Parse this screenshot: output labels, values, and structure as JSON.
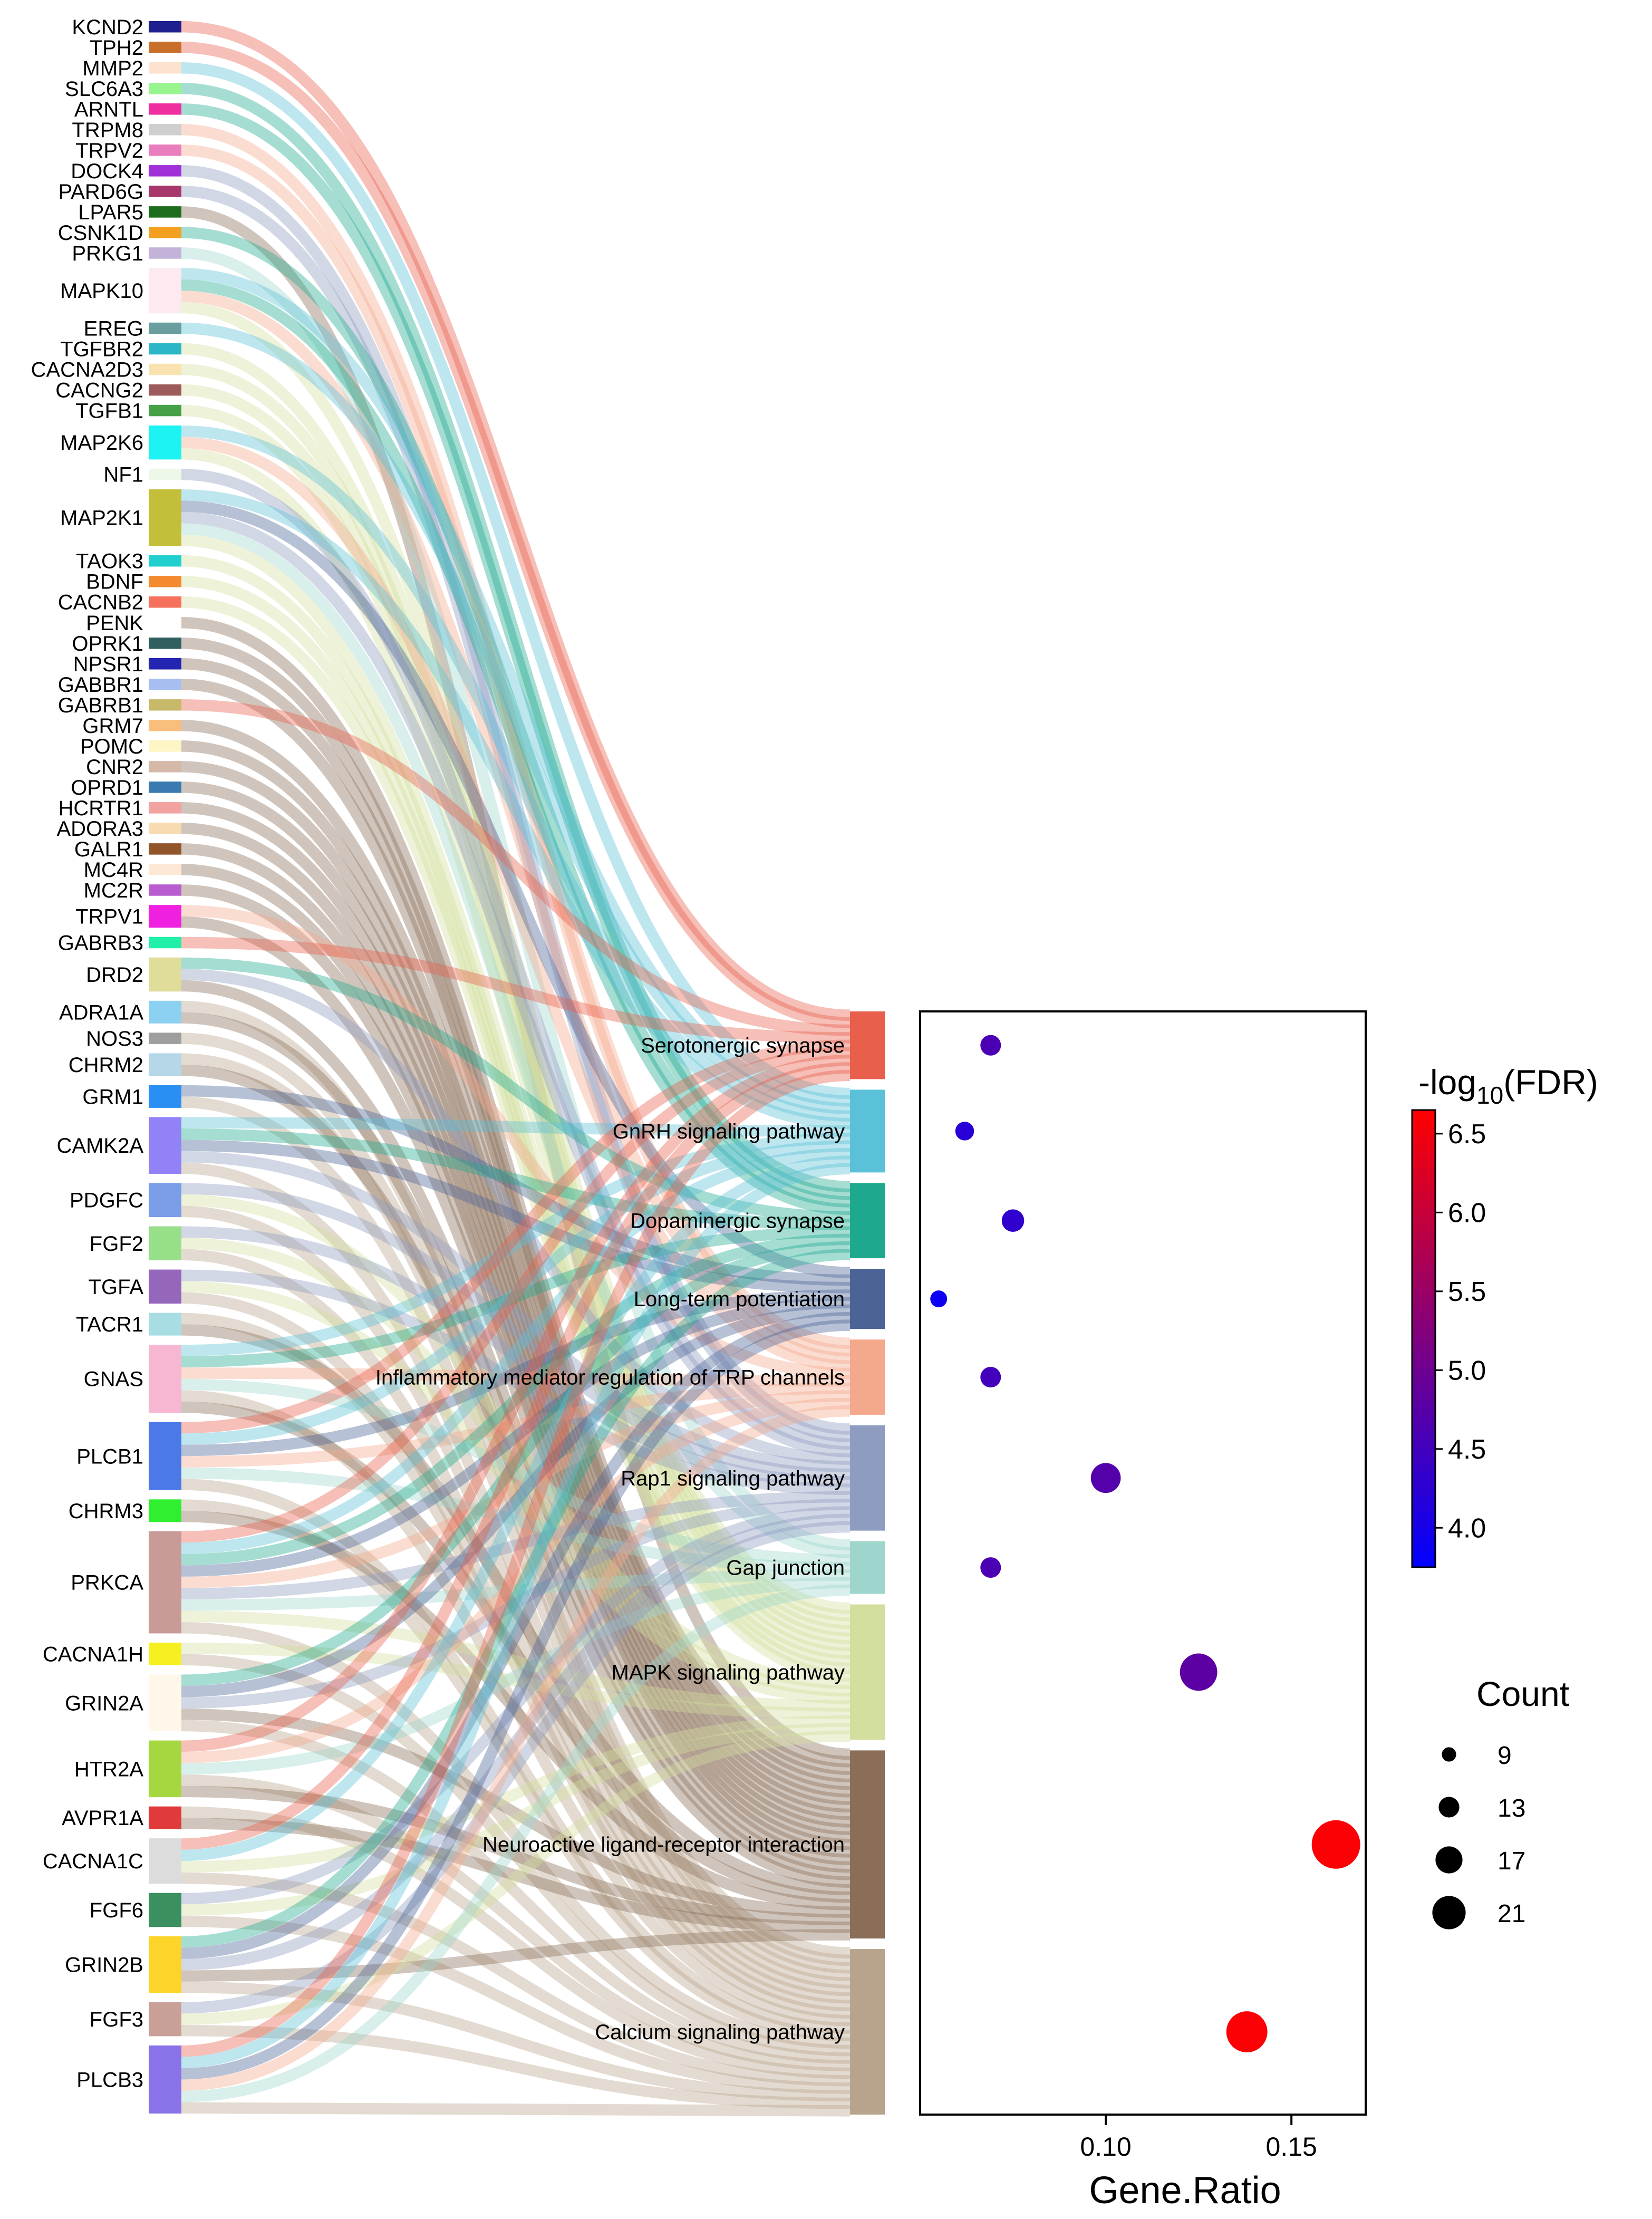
{
  "chart_data": [
    {
      "type": "sankey",
      "title": "",
      "genes": [
        {
          "name": "KCND2",
          "color": "#1f1f8f",
          "pathways": [
            0
          ]
        },
        {
          "name": "TPH2",
          "color": "#c8702a",
          "pathways": [
            0
          ]
        },
        {
          "name": "MMP2",
          "color": "#fde3cf",
          "pathways": [
            1
          ]
        },
        {
          "name": "SLC6A3",
          "color": "#98f58e",
          "pathways": [
            2
          ]
        },
        {
          "name": "ARNTL",
          "color": "#ef2fa0",
          "pathways": [
            2
          ]
        },
        {
          "name": "TRPM8",
          "color": "#cfcfcf",
          "pathways": [
            4
          ]
        },
        {
          "name": "TRPV2",
          "color": "#ea7dbd",
          "pathways": [
            4
          ]
        },
        {
          "name": "DOCK4",
          "color": "#a030d8",
          "pathways": [
            5
          ]
        },
        {
          "name": "PARD6G",
          "color": "#a8386c",
          "pathways": [
            5
          ]
        },
        {
          "name": "LPAR5",
          "color": "#1d6b1d",
          "pathways": [
            8
          ]
        },
        {
          "name": "CSNK1D",
          "color": "#f3a020",
          "pathways": [
            2
          ]
        },
        {
          "name": "PRKG1",
          "color": "#c3b3d8",
          "pathways": [
            6
          ]
        },
        {
          "name": "MAPK10",
          "color": "#fde9f0",
          "pathways": [
            1,
            2,
            4,
            7
          ]
        },
        {
          "name": "EREG",
          "color": "#6a9e9e",
          "pathways": [
            1
          ]
        },
        {
          "name": "TGFBR2",
          "color": "#2db7c6",
          "pathways": [
            7
          ]
        },
        {
          "name": "CACNA2D3",
          "color": "#f8e3b0",
          "pathways": [
            7
          ]
        },
        {
          "name": "CACNG2",
          "color": "#9c5a5a",
          "pathways": [
            7
          ]
        },
        {
          "name": "TGFB1",
          "color": "#45a048",
          "pathways": [
            7
          ]
        },
        {
          "name": "MAP2K6",
          "color": "#1ef3f3",
          "pathways": [
            1,
            4,
            7
          ]
        },
        {
          "name": "NF1",
          "color": "#eef8e8",
          "pathways": [
            5
          ]
        },
        {
          "name": "MAP2K1",
          "color": "#c3bf3a",
          "pathways": [
            1,
            3,
            5,
            6,
            7
          ]
        },
        {
          "name": "TAOK3",
          "color": "#22cfcf",
          "pathways": [
            7
          ]
        },
        {
          "name": "BDNF",
          "color": "#f48b31",
          "pathways": [
            7
          ]
        },
        {
          "name": "CACNB2",
          "color": "#f5715c",
          "pathways": [
            7
          ]
        },
        {
          "name": "PENK",
          "color": "#ffffff",
          "pathways": [
            8
          ]
        },
        {
          "name": "OPRK1",
          "color": "#2f5f5f",
          "pathways": [
            8
          ]
        },
        {
          "name": "NPSR1",
          "color": "#2424b2",
          "pathways": [
            8
          ]
        },
        {
          "name": "GABBR1",
          "color": "#a7bff0",
          "pathways": [
            8
          ]
        },
        {
          "name": "GABRB1",
          "color": "#c8b86a",
          "pathways": [
            0
          ]
        },
        {
          "name": "GRM7",
          "color": "#f9be7c",
          "pathways": [
            8
          ]
        },
        {
          "name": "POMC",
          "color": "#fdf6c4",
          "pathways": [
            8
          ]
        },
        {
          "name": "CNR2",
          "color": "#d6b8a8",
          "pathways": [
            8
          ]
        },
        {
          "name": "OPRD1",
          "color": "#3a7ab0",
          "pathways": [
            8
          ]
        },
        {
          "name": "HCRTR1",
          "color": "#f3a2a2",
          "pathways": [
            8
          ]
        },
        {
          "name": "ADORA3",
          "color": "#f9dbb1",
          "pathways": [
            8
          ]
        },
        {
          "name": "GALR1",
          "color": "#92552a",
          "pathways": [
            8
          ]
        },
        {
          "name": "MC4R",
          "color": "#fde8d6",
          "pathways": [
            8
          ]
        },
        {
          "name": "MC2R",
          "color": "#b85cd0",
          "pathways": [
            8
          ]
        },
        {
          "name": "TRPV1",
          "color": "#f020e0",
          "pathways": [
            4,
            8
          ]
        },
        {
          "name": "GABRB3",
          "color": "#22f0a8",
          "pathways": [
            0
          ]
        },
        {
          "name": "DRD2",
          "color": "#e0dc9a",
          "pathways": [
            2,
            5,
            8
          ]
        },
        {
          "name": "ADRA1A",
          "color": "#8cd0f2",
          "pathways": [
            9,
            8
          ]
        },
        {
          "name": "NOS3",
          "color": "#9e9e9e",
          "pathways": [
            9
          ]
        },
        {
          "name": "CHRM2",
          "color": "#b5d7e8",
          "pathways": [
            9,
            8
          ]
        },
        {
          "name": "GRM1",
          "color": "#2a8ff2",
          "pathways": [
            3,
            9
          ]
        },
        {
          "name": "CAMK2A",
          "color": "#9282f7",
          "pathways": [
            1,
            2,
            3,
            5,
            9
          ]
        },
        {
          "name": "PDGFC",
          "color": "#7a9de8",
          "pathways": [
            5,
            7,
            9
          ]
        },
        {
          "name": "FGF2",
          "color": "#98df8a",
          "pathways": [
            5,
            7,
            9
          ]
        },
        {
          "name": "TGFA",
          "color": "#9467bd",
          "pathways": [
            5,
            7,
            9
          ]
        },
        {
          "name": "TACR1",
          "color": "#a8dde4",
          "pathways": [
            9,
            8
          ]
        },
        {
          "name": "GNAS",
          "color": "#f7b6d2",
          "pathways": [
            1,
            2,
            4,
            6,
            9,
            8
          ]
        },
        {
          "name": "PLCB1",
          "color": "#4b7ae8",
          "pathways": [
            0,
            1,
            3,
            4,
            6,
            9
          ]
        },
        {
          "name": "CHRM3",
          "color": "#30ef30",
          "pathways": [
            9,
            8
          ]
        },
        {
          "name": "PRKCA",
          "color": "#c89a98",
          "pathways": [
            0,
            1,
            2,
            3,
            4,
            5,
            6,
            7,
            9
          ]
        },
        {
          "name": "CACNA1H",
          "color": "#f6f020",
          "pathways": [
            7,
            9
          ]
        },
        {
          "name": "GRIN2A",
          "color": "#fff7ea",
          "pathways": [
            2,
            3,
            5,
            8,
            9
          ]
        },
        {
          "name": "HTR2A",
          "color": "#a5d840",
          "pathways": [
            0,
            4,
            6,
            9,
            8
          ]
        },
        {
          "name": "AVPR1A",
          "color": "#e03a3a",
          "pathways": [
            9,
            8
          ]
        },
        {
          "name": "CACNA1C",
          "color": "#dcdcdc",
          "pathways": [
            0,
            1,
            7,
            9
          ]
        },
        {
          "name": "FGF6",
          "color": "#3a9060",
          "pathways": [
            5,
            7,
            9
          ]
        },
        {
          "name": "GRIN2B",
          "color": "#fdd52a",
          "pathways": [
            2,
            3,
            5,
            8,
            9
          ]
        },
        {
          "name": "FGF3",
          "color": "#c8a098",
          "pathways": [
            5,
            7,
            9
          ]
        },
        {
          "name": "PLCB3",
          "color": "#8a72e8",
          "pathways": [
            0,
            1,
            3,
            4,
            6,
            9
          ]
        }
      ],
      "pathways": [
        {
          "name": "Serotonergic synapse",
          "color": "#e8604c",
          "gene_ratio": 0.069,
          "count": 11,
          "neg_log10_fdr": 4.6
        },
        {
          "name": "GnRH signaling pathway",
          "color": "#5bc1d8",
          "gene_ratio": 0.062,
          "count": 10,
          "neg_log10_fdr": 4.2
        },
        {
          "name": "Dopaminergic synapse",
          "color": "#1ea98e",
          "gene_ratio": 0.075,
          "count": 12,
          "neg_log10_fdr": 4.3
        },
        {
          "name": "Long-term potentiation",
          "color": "#4c6395",
          "gene_ratio": 0.055,
          "count": 9,
          "neg_log10_fdr": 3.9
        },
        {
          "name": "Inflammatory mediator regulation of TRP channels",
          "color": "#f4a88c",
          "gene_ratio": 0.069,
          "count": 11,
          "neg_log10_fdr": 4.5
        },
        {
          "name": "Rap1 signaling pathway",
          "color": "#8e9cc0",
          "gene_ratio": 0.1,
          "count": 16,
          "neg_log10_fdr": 4.7
        },
        {
          "name": "Gap junction",
          "color": "#9ed6cd",
          "gene_ratio": 0.069,
          "count": 11,
          "neg_log10_fdr": 4.6
        },
        {
          "name": "MAPK signaling pathway",
          "color": "#d3df9e",
          "gene_ratio": 0.125,
          "count": 20,
          "neg_log10_fdr": 4.8
        },
        {
          "name": "Neuroactive ligand-receptor interaction",
          "color": "#8a6e57",
          "gene_ratio": 0.162,
          "count": 26,
          "neg_log10_fdr": 6.6
        },
        {
          "name": "Calcium signaling pathway",
          "color": "#b8a48d",
          "gene_ratio": 0.138,
          "count": 22,
          "neg_log10_fdr": 6.6
        }
      ]
    },
    {
      "type": "scatter",
      "xlabel": "Gene.Ratio",
      "ylabel": "",
      "xlim": [
        0.05,
        0.17
      ],
      "xticks": [
        0.1,
        0.15
      ],
      "xtick_labels": [
        "0.10",
        "0.15"
      ],
      "grid": false,
      "color_legend": {
        "title_prefix": "-log",
        "title_sub": "10",
        "title_suffix": "(FDR)",
        "min": 3.75,
        "max": 6.65,
        "ticks": [
          "4.0",
          "4.5",
          "5.0",
          "5.5",
          "6.0",
          "6.5"
        ],
        "low_color": "#0000ff",
        "high_color": "#ff0000"
      },
      "size_legend": {
        "title": "Count",
        "values": [
          9,
          13,
          17,
          21
        ],
        "labels": [
          "9",
          "13",
          "17",
          "21"
        ]
      }
    }
  ]
}
